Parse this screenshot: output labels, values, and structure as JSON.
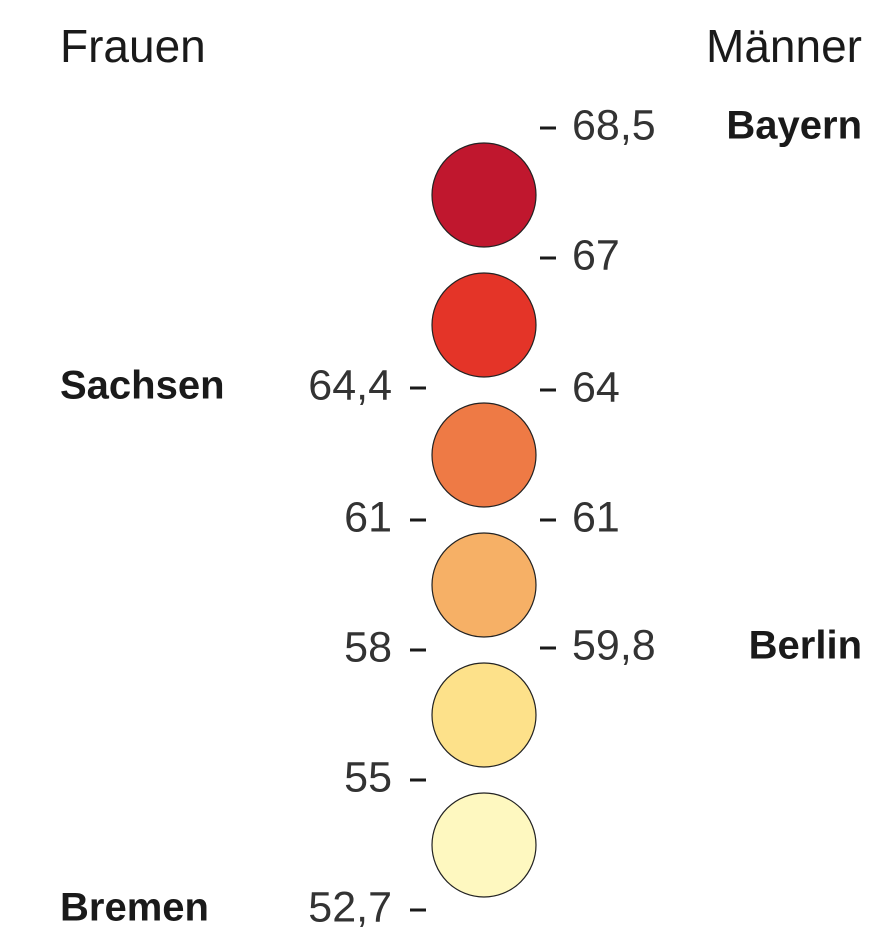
{
  "header": {
    "left": "Frauen",
    "right": "Männer"
  },
  "circles": [
    {
      "color": "#c0172e"
    },
    {
      "color": "#e43428"
    },
    {
      "color": "#ee7a45"
    },
    {
      "color": "#f6b066"
    },
    {
      "color": "#fde18a"
    },
    {
      "color": "#fef8c0"
    }
  ],
  "left_ticks": [
    {
      "label": "64,4",
      "region": "Sachsen"
    },
    {
      "label": "61"
    },
    {
      "label": "58"
    },
    {
      "label": "55"
    },
    {
      "label": "52,7",
      "region": "Bremen"
    }
  ],
  "right_ticks": [
    {
      "label": "68,5",
      "region": "Bayern"
    },
    {
      "label": "67"
    },
    {
      "label": "64"
    },
    {
      "label": "61"
    },
    {
      "label": "59,8",
      "region": "Berlin"
    }
  ]
}
